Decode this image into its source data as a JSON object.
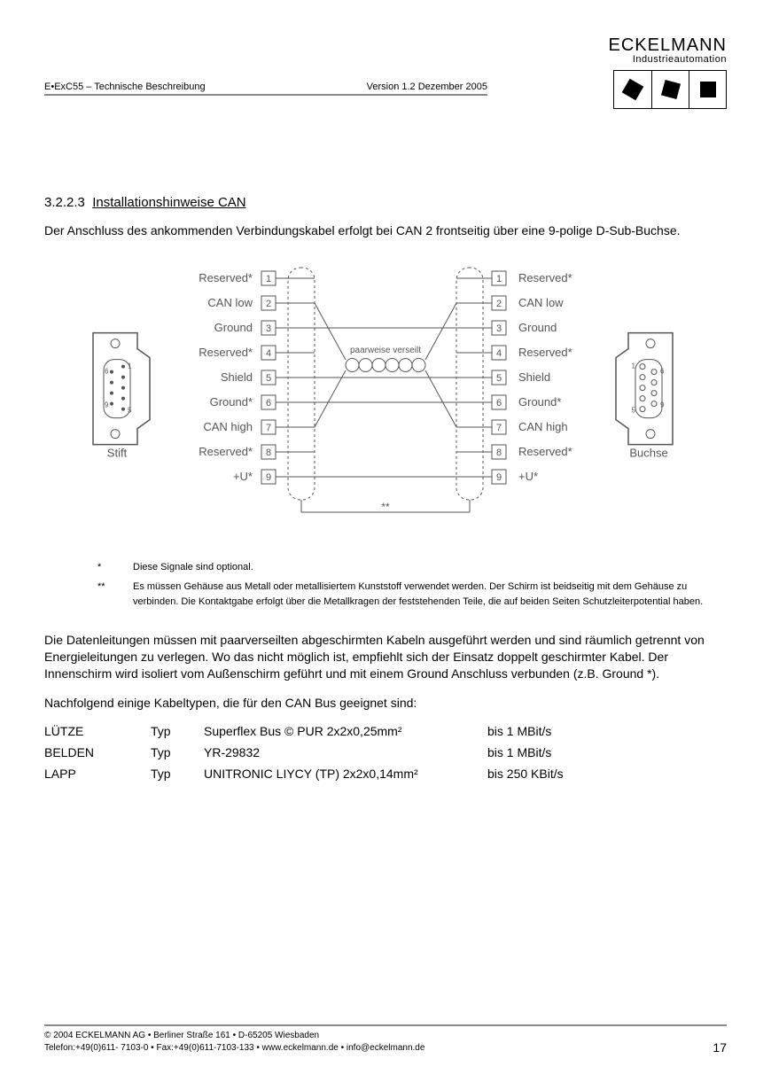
{
  "header": {
    "doc_left": "E•ExC55 – Technische Beschreibung",
    "doc_right": "Version 1.2   Dezember 2005",
    "logo_main": "ECKELMANN",
    "logo_sub": "Industrieautomation"
  },
  "section": {
    "number": "3.2.2.3",
    "title": "Installationshinweise CAN"
  },
  "para1": "Der Anschluss des ankommenden Verbindungskabel erfolgt bei CAN 2 frontseitig über eine 9-polige D-Sub-Buchse.",
  "diagram": {
    "left_conn_label": "Stift",
    "right_conn_label": "Buchse",
    "twist_label": "paarweise verseilt",
    "shield_marker": "**",
    "pins": [
      {
        "n": "1",
        "l": "Reserved*",
        "r": "Reserved*"
      },
      {
        "n": "2",
        "l": "CAN low",
        "r": "CAN low"
      },
      {
        "n": "3",
        "l": "Ground",
        "r": "Ground"
      },
      {
        "n": "4",
        "l": "Reserved*",
        "r": "Reserved*"
      },
      {
        "n": "5",
        "l": "Shield",
        "r": "Shield"
      },
      {
        "n": "6",
        "l": "Ground*",
        "r": "Ground*"
      },
      {
        "n": "7",
        "l": "CAN high",
        "r": "CAN high"
      },
      {
        "n": "8",
        "l": "Reserved*",
        "r": "Reserved*"
      },
      {
        "n": "9",
        "l": "+U*",
        "r": "+U*"
      }
    ],
    "colors": {
      "stroke": "#555555",
      "text": "#555555",
      "bg": "#ffffff"
    }
  },
  "notes": {
    "n1_star": "*",
    "n1": "Diese Signale sind optional.",
    "n2_star": "**",
    "n2": "Es müssen Gehäuse aus Metall oder metallisiertem Kunststoff verwendet werden. Der Schirm ist beidseitig mit dem Gehäuse zu verbinden. Die Kontaktgabe erfolgt über die Metallkragen der feststehenden Teile, die auf beiden Seiten Schutzleiterpotential haben."
  },
  "para2": "Die Datenleitungen müssen mit paarverseilten abgeschirmten Kabeln ausgeführt werden und sind räumlich getrennt von Energieleitungen zu verlegen. Wo das nicht möglich ist, empfiehlt sich der Einsatz doppelt geschirmter Kabel. Der Innenschirm wird isoliert vom Außenschirm geführt und mit einem Ground Anschluss verbunden (z.B. Ground *).",
  "para3": "Nachfolgend einige Kabeltypen, die für den CAN Bus geeignet sind:",
  "cables": [
    {
      "brand": "LÜTZE",
      "typ": "Typ",
      "desc": "Superflex Bus © PUR  2x2x0,25mm²",
      "speed": "bis 1 MBit/s"
    },
    {
      "brand": "BELDEN",
      "typ": "Typ",
      "desc": "YR-29832",
      "speed": "bis 1 MBit/s"
    },
    {
      "brand": "LAPP",
      "typ": "Typ",
      "desc": "UNITRONIC LIYCY (TP) 2x2x0,14mm²",
      "speed": "bis 250 KBit/s"
    }
  ],
  "footer": {
    "line1": "©  2004 ECKELMANN AG • Berliner Straße 161 • D-65205 Wiesbaden",
    "line2": "Telefon:+49(0)611- 7103-0 • Fax:+49(0)611-7103-133 • www.eckelmann.de • info@eckelmann.de",
    "page": "17"
  }
}
